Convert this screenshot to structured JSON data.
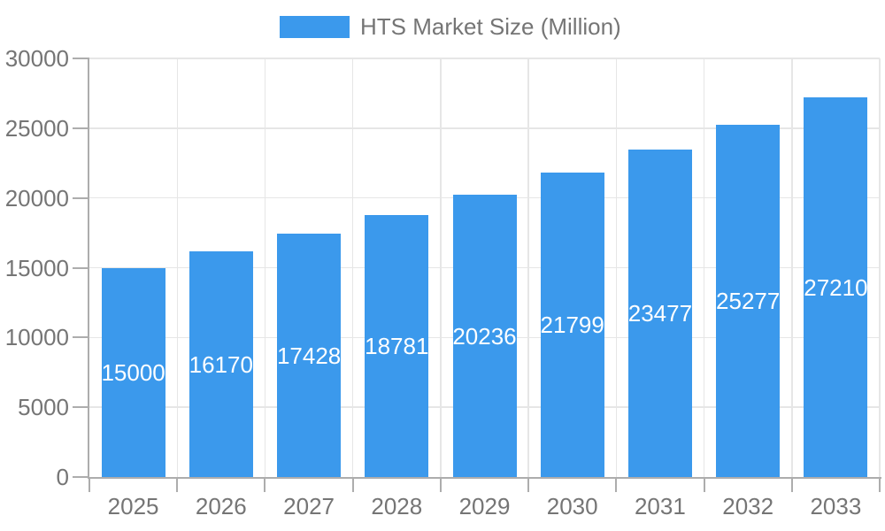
{
  "legend": {
    "label": "HTS Market Size (Million)"
  },
  "chart_data": {
    "type": "bar",
    "title": "",
    "categories": [
      "2025",
      "2026",
      "2027",
      "2028",
      "2029",
      "2030",
      "2031",
      "2032",
      "2033"
    ],
    "series": [
      {
        "name": "HTS Market Size (Million)",
        "values": [
          15000,
          16170,
          17428,
          18781,
          20236,
          21799,
          23477,
          25277,
          27210
        ]
      }
    ],
    "xlabel": "",
    "ylabel": "",
    "ylim": [
      0,
      30000
    ],
    "yticks": [
      0,
      5000,
      10000,
      15000,
      20000,
      25000,
      30000
    ],
    "grid": true,
    "legend_position": "top-center",
    "value_labels_position": "inside-center"
  },
  "colors": {
    "bar": "#3B99EC",
    "grid": "#E6E6E6",
    "axis": "#ADADAD",
    "tick_text": "#757575",
    "legend_text": "#757575",
    "value_label_text": "#FFFFFF",
    "background": "#FFFFFF"
  }
}
